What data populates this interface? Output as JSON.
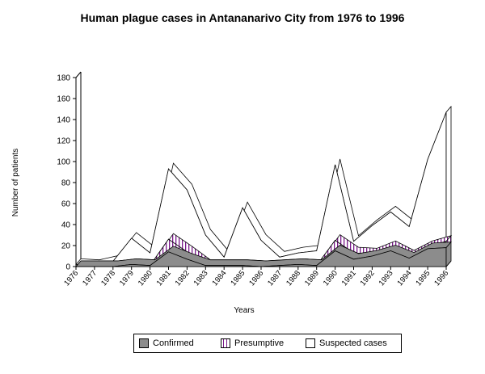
{
  "chart_data": {
    "type": "area",
    "title": "Human plague cases in Antananarivo City from 1976 to 1996",
    "xlabel": "Years",
    "ylabel": "Number of patients",
    "ylim": [
      0,
      180
    ],
    "yticks": [
      0,
      20,
      40,
      60,
      80,
      100,
      120,
      140,
      160,
      180
    ],
    "categories": [
      "1976",
      "1977",
      "1978",
      "1979",
      "1980",
      "1981",
      "1982",
      "1983",
      "1984",
      "1985",
      "1986",
      "1987",
      "1988",
      "1989",
      "1990",
      "1991",
      "1992",
      "1993",
      "1994",
      "1995",
      "1996"
    ],
    "stacked": true,
    "series": [
      {
        "name": "Confirmed",
        "color": "#8c8c8c",
        "values": [
          0,
          0,
          0,
          2,
          1,
          14,
          7,
          1,
          1,
          1,
          0,
          1,
          2,
          1,
          15,
          7,
          10,
          15,
          8,
          17,
          18
        ]
      },
      {
        "name": "Presumptive",
        "color": "#7a1a8a",
        "values": [
          0,
          0,
          0,
          0,
          0,
          12,
          7,
          0,
          0,
          0,
          0,
          0,
          0,
          0,
          10,
          6,
          2,
          4,
          2,
          2,
          6
        ]
      },
      {
        "name": "Suspected cases",
        "color": "#ffffff",
        "values": [
          2,
          1,
          5,
          25,
          12,
          67,
          59,
          29,
          8,
          55,
          25,
          8,
          11,
          14,
          72,
          11,
          27,
          33,
          28,
          83,
          123
        ]
      }
    ],
    "legend_position": "bottom"
  }
}
